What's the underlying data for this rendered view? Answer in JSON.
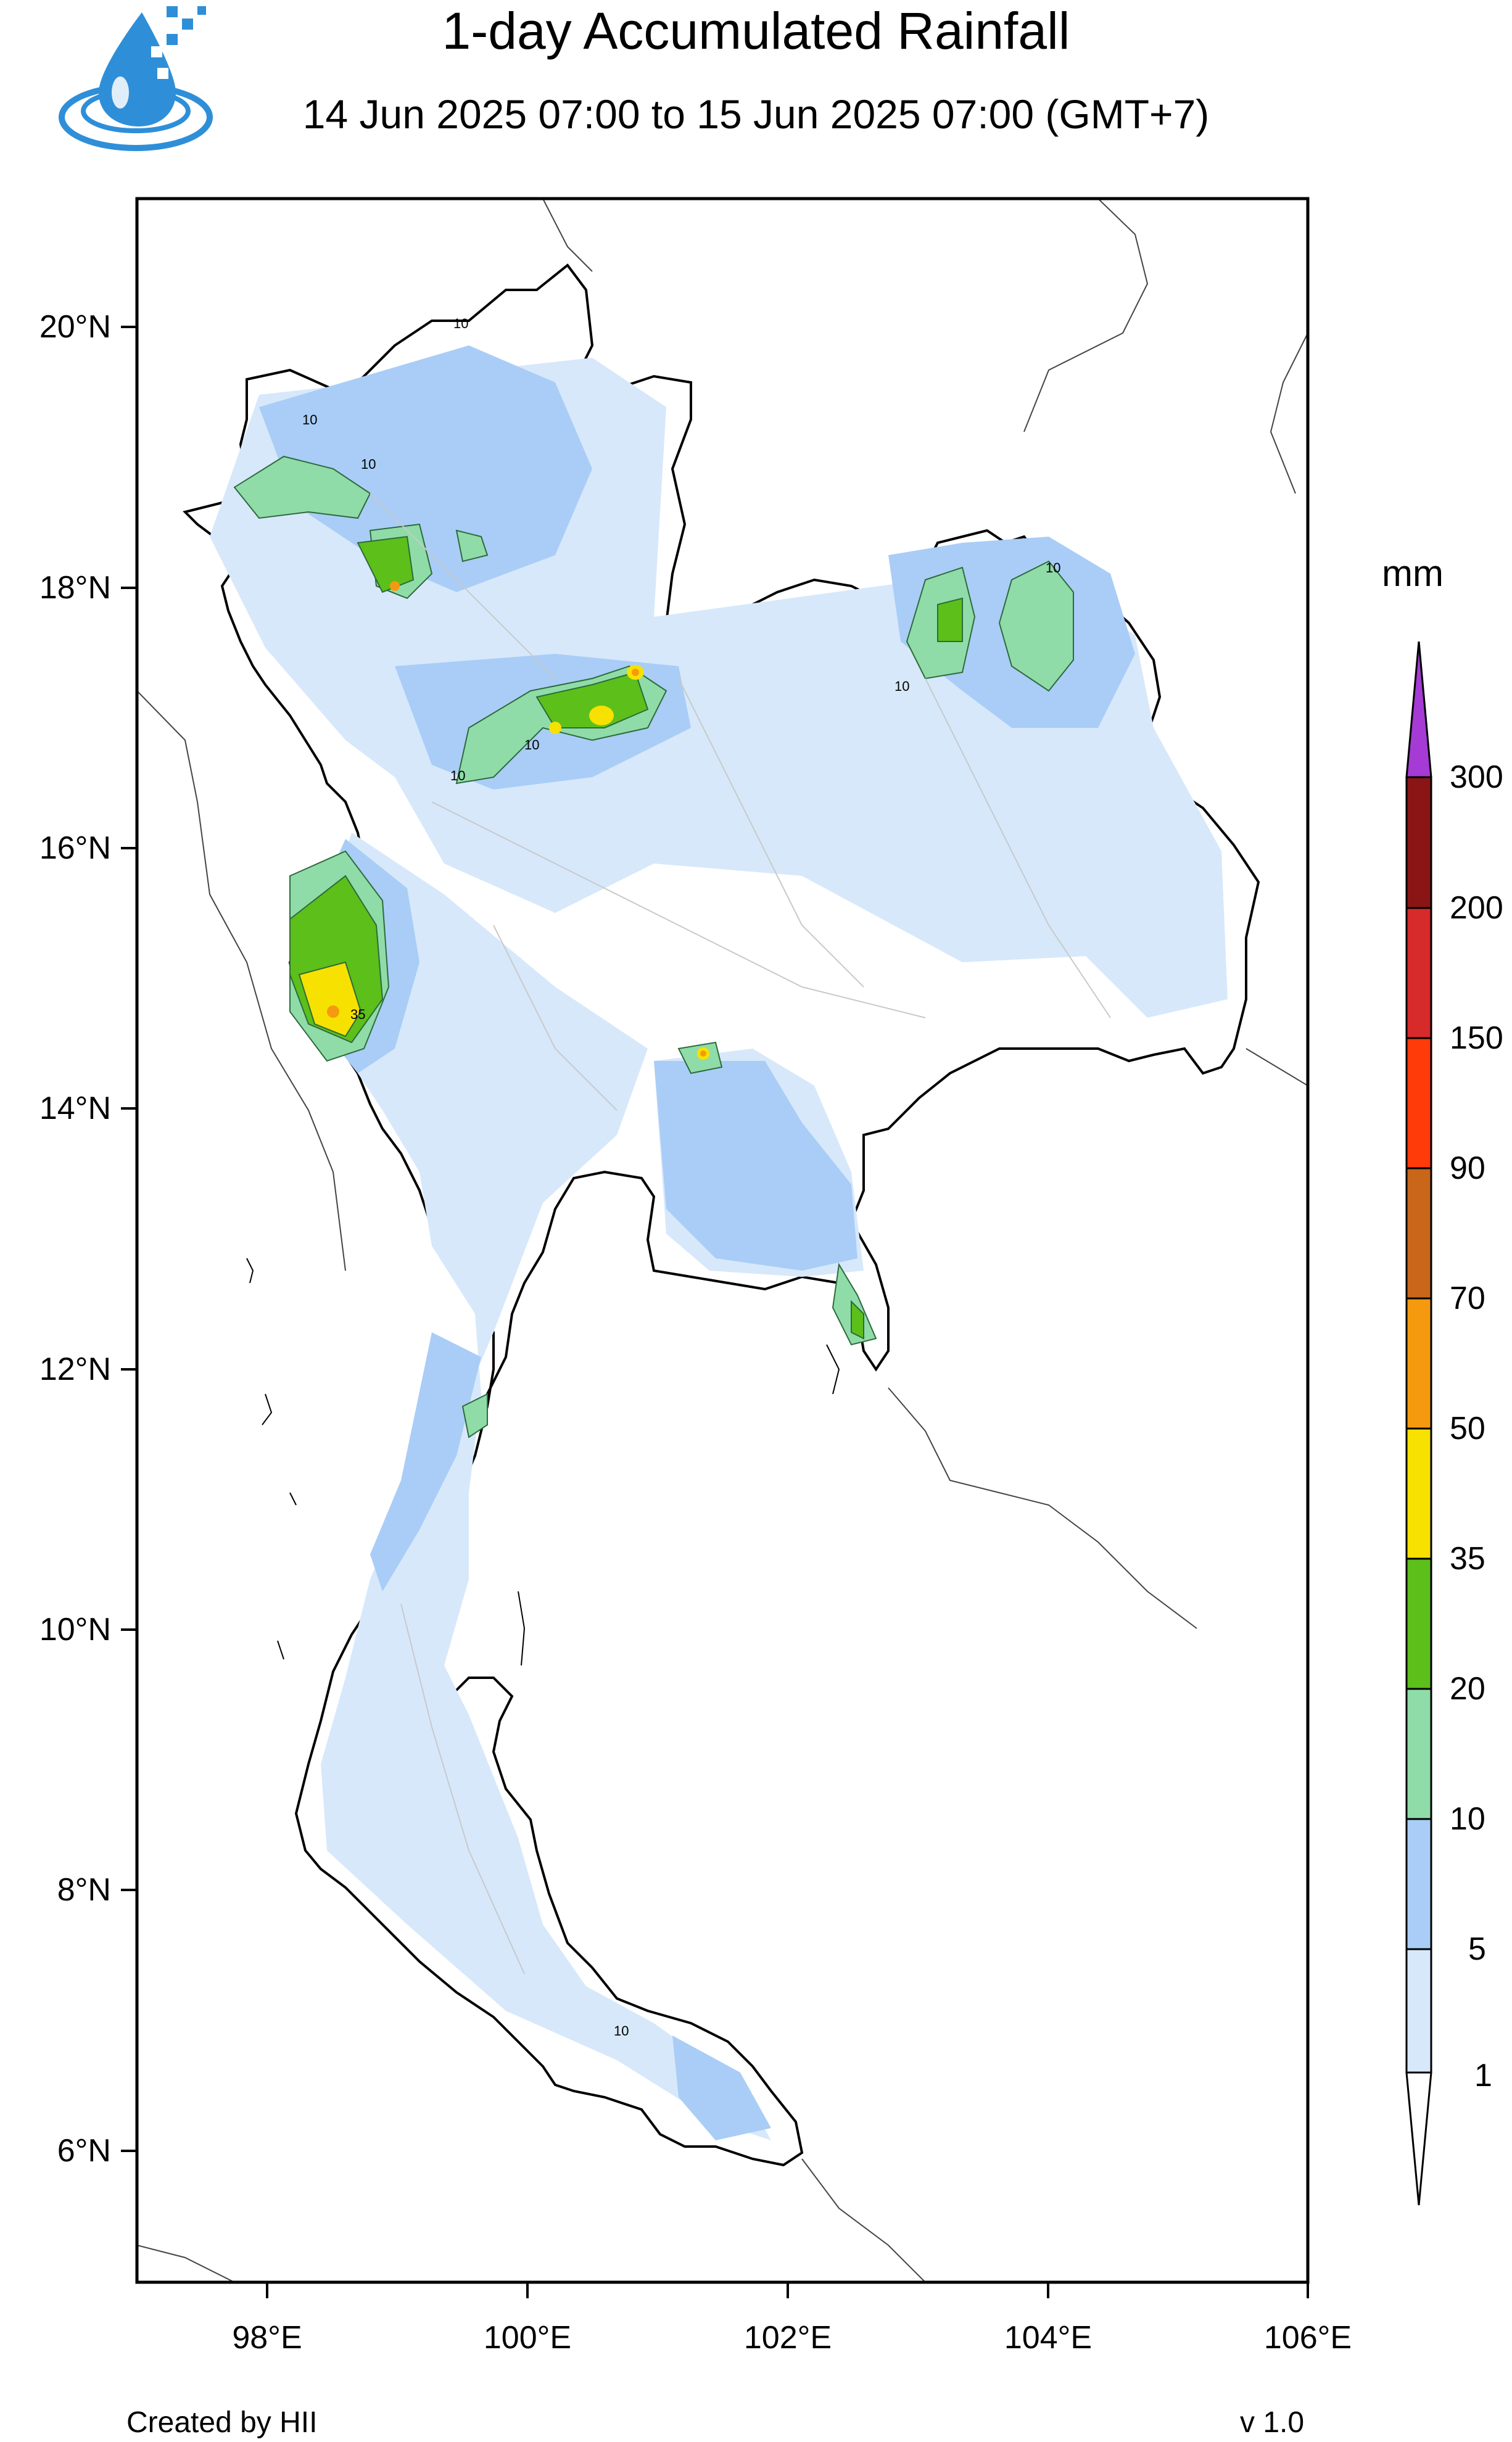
{
  "header": {
    "title": "1-day Accumulated Rainfall",
    "subtitle": "14 Jun 2025 07:00 to 15 Jun 2025 07:00 (GMT+7)"
  },
  "map": {
    "lat_labels": [
      "20°N",
      "18°N",
      "16°N",
      "14°N",
      "12°N",
      "10°N",
      "8°N",
      "6°N"
    ],
    "lon_labels": [
      "98°E",
      "100°E",
      "102°E",
      "104°E",
      "106°E"
    ],
    "contour_labels": [
      "10",
      "10",
      "10",
      "10",
      "10",
      "10",
      "10",
      "10",
      "35"
    ]
  },
  "colorbar": {
    "unit": "mm",
    "levels": [
      "300",
      "200",
      "150",
      "90",
      "70",
      "50",
      "35",
      "20",
      "10",
      "5",
      "1"
    ],
    "colors": {
      "c1": "#d7e8fb",
      "c5": "#a9cdf6",
      "c10": "#8fdca8",
      "c20": "#5dbf1a",
      "c35": "#f7e100",
      "c50": "#f59a0f",
      "c70": "#c8661a",
      "c90": "#ff3b0a",
      "c150": "#d72a2a",
      "c200": "#8a1515",
      "c300": "#a53ad4"
    }
  },
  "footer": {
    "credit": "Created by HII",
    "version": "v 1.0"
  }
}
